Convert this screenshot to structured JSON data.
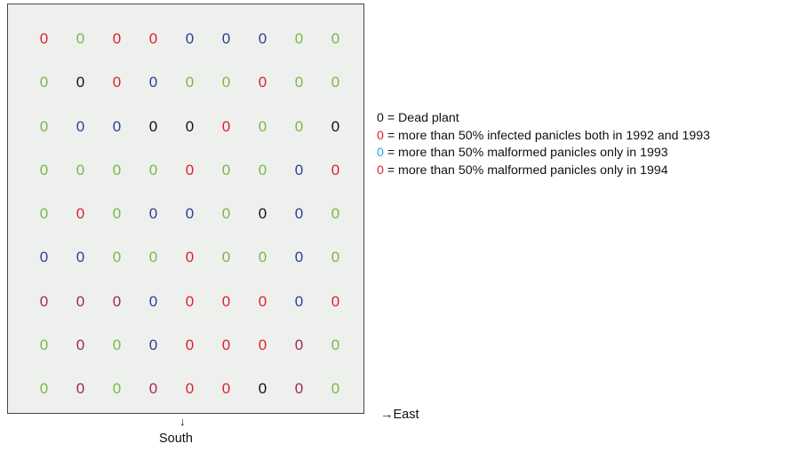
{
  "colors": {
    "dead": "#111111",
    "infected_both": "#e0202a",
    "malformed_1993": "#2aa8d8",
    "malformed_1994": "#e0202a",
    "green": "#7ab648",
    "blue": "#2c3f94",
    "purple": "#a0255e",
    "red": "#e0202a",
    "black": "#111111"
  },
  "grid": {
    "symbol": "0",
    "rows": [
      [
        "red",
        "green",
        "red",
        "red",
        "blue",
        "blue",
        "blue",
        "green",
        "green"
      ],
      [
        "green",
        "black",
        "red",
        "blue",
        "green",
        "green",
        "red",
        "green",
        "green"
      ],
      [
        "green",
        "blue",
        "blue",
        "black",
        "black",
        "red",
        "green",
        "green",
        "black"
      ],
      [
        "green",
        "green",
        "green",
        "green",
        "red",
        "green",
        "green",
        "blue",
        "red"
      ],
      [
        "green",
        "red",
        "green",
        "blue",
        "blue",
        "green",
        "black",
        "blue",
        "green"
      ],
      [
        "blue",
        "blue",
        "green",
        "green",
        "red",
        "green",
        "green",
        "blue",
        "green"
      ],
      [
        "purple",
        "purple",
        "purple",
        "blue",
        "red",
        "red",
        "red",
        "blue",
        "red"
      ],
      [
        "green",
        "purple",
        "green",
        "blue",
        "red",
        "red",
        "red",
        "purple",
        "green"
      ],
      [
        "green",
        "purple",
        "green",
        "purple",
        "red",
        "red",
        "black",
        "purple",
        "green"
      ]
    ]
  },
  "legend": [
    {
      "symbol": "0",
      "text": " = Dead plant",
      "color_key": "dead"
    },
    {
      "symbol": "0",
      "text": " = more than 50% infected panicles both in 1992 and 1993",
      "color_key": "infected_both"
    },
    {
      "symbol": "0",
      "text": " = more than 50% malformed panicles only in 1993",
      "color_key": "malformed_1993"
    },
    {
      "symbol": "0",
      "text": " = more than 50% malformed panicles only in 1994",
      "color_key": "malformed_1994"
    }
  ],
  "compass": {
    "east_label": "→East",
    "south_arrow": "↓",
    "south_label": "South"
  }
}
